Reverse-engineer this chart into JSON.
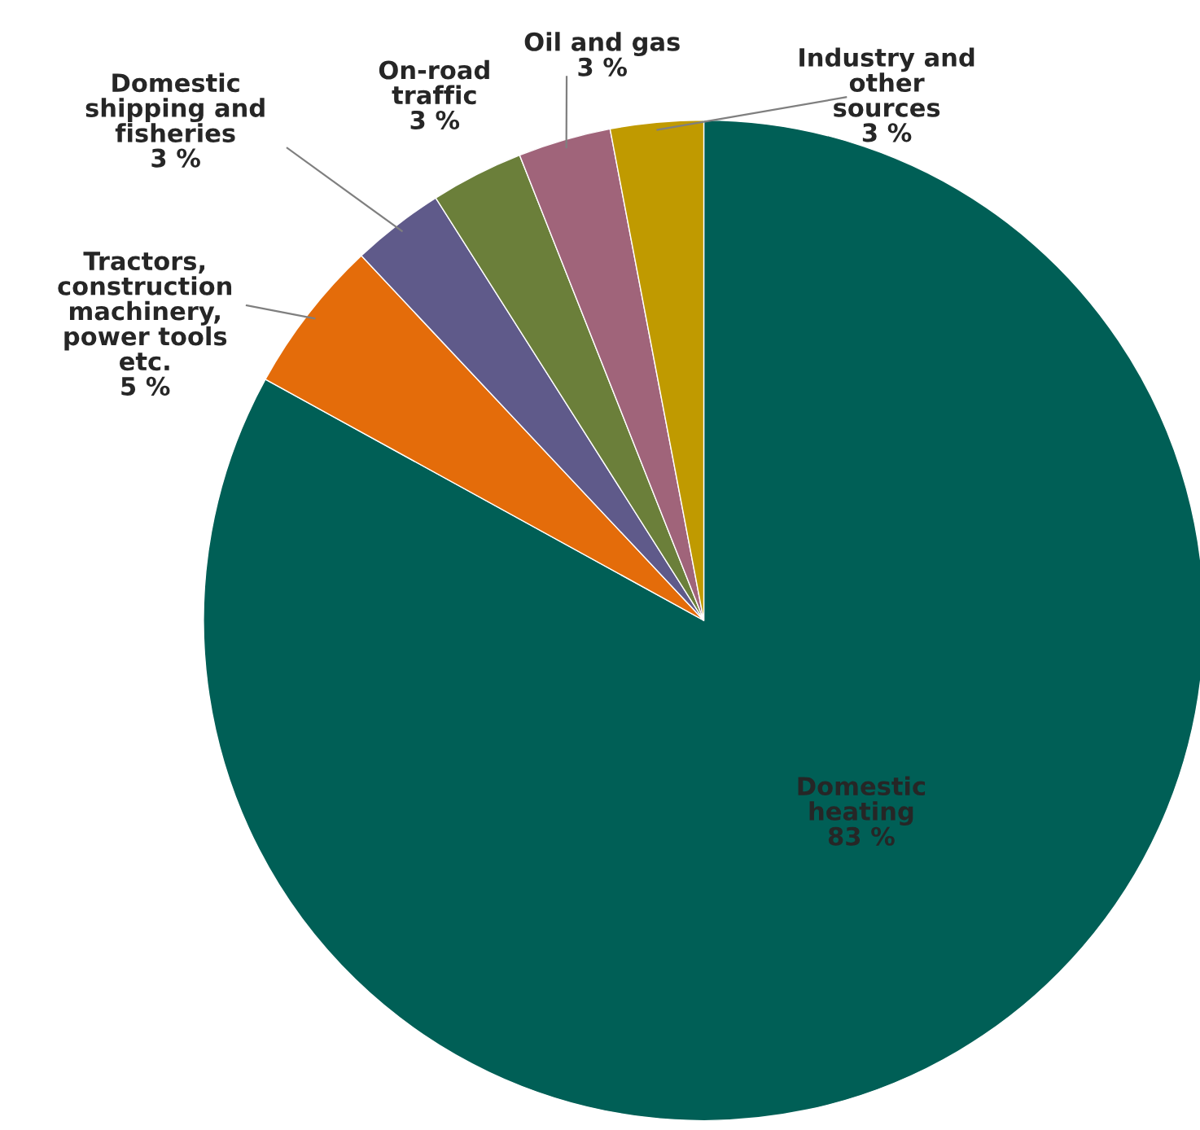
{
  "chart_data": {
    "type": "pie",
    "categories": [
      "Domestic\nheating",
      "Tractors,\nconstruction\nmachinery,\npower tools\netc.",
      "Domestic\nshipping and\nfisheries",
      "On-road\ntraffic",
      "Oil and gas",
      "Industry and\nother\nsources"
    ],
    "values": [
      83,
      5,
      3,
      3,
      3,
      3
    ],
    "value_labels": [
      "83 %",
      "5 %",
      "3 %",
      "3 %",
      "3 %",
      "3 %"
    ],
    "colors": [
      "#005f56",
      "#e46c0a",
      "#5f5a8a",
      "#6b7f3a",
      "#a0647a",
      "#c09a00"
    ],
    "legend": false
  }
}
